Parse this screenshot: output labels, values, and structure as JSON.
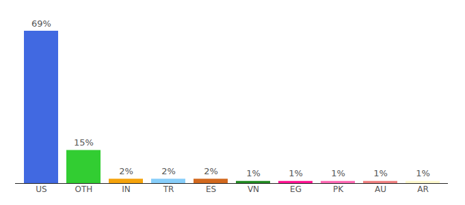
{
  "chart_data": {
    "type": "bar",
    "categories": [
      "US",
      "OTH",
      "IN",
      "TR",
      "ES",
      "VN",
      "EG",
      "PK",
      "AU",
      "AR"
    ],
    "values": [
      69,
      15,
      2,
      2,
      2,
      1,
      1,
      1,
      1,
      1
    ],
    "value_labels": [
      "69%",
      "15%",
      "2%",
      "2%",
      "2%",
      "1%",
      "1%",
      "1%",
      "1%",
      "1%"
    ],
    "colors": [
      "#4169e1",
      "#32cd32",
      "#f5a30c",
      "#87cefa",
      "#d2691e",
      "#228b22",
      "#ff1493",
      "#ff69b4",
      "#f08080",
      "#fffacd"
    ],
    "ylim": [
      0,
      69
    ],
    "data_labels": true,
    "tick_labels": "x",
    "grid": false
  }
}
